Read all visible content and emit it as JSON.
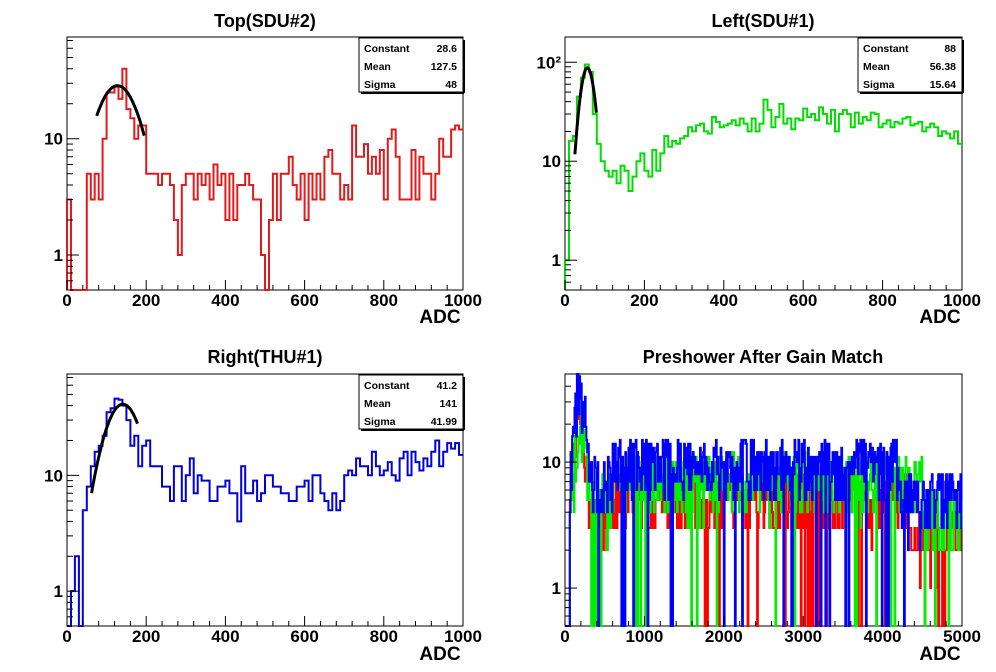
{
  "chart_data": [
    {
      "type": "histogram",
      "title": "Top(SDU#2)",
      "xlabel": "ADC",
      "ylabel": "",
      "xlim": [
        0,
        1000
      ],
      "ylim": [
        0.5,
        75
      ],
      "yscale": "log",
      "xticks": [
        "0",
        "200",
        "400",
        "600",
        "800",
        "1000"
      ],
      "yticks": [
        {
          "value": 1,
          "label": "1"
        },
        {
          "value": 10,
          "label": "10"
        }
      ],
      "color": "#e31a1c",
      "stats": [
        {
          "label": "Constant",
          "value": "28.6"
        },
        {
          "label": "Mean",
          "value": "127.5"
        },
        {
          "label": "Sigma",
          "value": "48"
        }
      ],
      "fit": {
        "constant": 28.6,
        "mean": 127.5,
        "sigma": 48,
        "range": [
          75,
          195
        ]
      },
      "bin_width": 10,
      "values": [
        3,
        0,
        0,
        0,
        0,
        5,
        3,
        5,
        3,
        10,
        25,
        25,
        28,
        22,
        40,
        18,
        15,
        10,
        13,
        13,
        5,
        5,
        5,
        4,
        5,
        5,
        4,
        2,
        1,
        4,
        5,
        5,
        3,
        5,
        4,
        5,
        3,
        6,
        4,
        5,
        2,
        5,
        2,
        4,
        4,
        5,
        4,
        3,
        3,
        1,
        0,
        2,
        5,
        2,
        5,
        5,
        7,
        4,
        3,
        5,
        2,
        5,
        3,
        5,
        3,
        7,
        8,
        5,
        5,
        3,
        4,
        3,
        13,
        7,
        7,
        9,
        5,
        7,
        5,
        8,
        3,
        10,
        12,
        7,
        3,
        3,
        3,
        8,
        3,
        7,
        5,
        5,
        3,
        5,
        10,
        7,
        7,
        12,
        13,
        12
      ]
    },
    {
      "type": "histogram",
      "title": "Left(SDU#1)",
      "xlabel": "ADC",
      "ylabel": "",
      "xlim": [
        0,
        1000
      ],
      "ylim": [
        0.5,
        180
      ],
      "yscale": "log",
      "xticks": [
        "0",
        "200",
        "400",
        "600",
        "800",
        "1000"
      ],
      "yticks": [
        {
          "value": 1,
          "label": "1"
        },
        {
          "value": 10,
          "label": "10"
        },
        {
          "value": 100,
          "label": "10²"
        }
      ],
      "color": "#00dd00",
      "stats": [
        {
          "label": "Constant",
          "value": "88"
        },
        {
          "label": "Mean",
          "value": "56.38"
        },
        {
          "label": "Sigma",
          "value": "15.64"
        }
      ],
      "fit": {
        "constant": 88,
        "mean": 56.38,
        "sigma": 15.64,
        "range": [
          25,
          80
        ]
      },
      "bin_width": 10,
      "values": [
        1,
        16,
        18,
        45,
        70,
        95,
        80,
        30,
        15,
        10,
        8,
        7,
        8,
        6,
        9,
        8,
        5,
        7,
        10,
        12,
        8,
        7,
        13,
        8,
        12,
        18,
        14,
        16,
        15,
        17,
        18,
        22,
        20,
        23,
        24,
        20,
        19,
        28,
        25,
        22,
        23,
        24,
        26,
        23,
        27,
        24,
        20,
        27,
        20,
        24,
        42,
        33,
        22,
        28,
        38,
        24,
        27,
        21,
        27,
        26,
        34,
        28,
        30,
        26,
        35,
        30,
        24,
        33,
        20,
        30,
        33,
        30,
        22,
        31,
        24,
        28,
        26,
        31,
        30,
        22,
        24,
        26,
        22,
        25,
        24,
        27,
        28,
        23,
        24,
        25,
        20,
        22,
        24,
        22,
        18,
        20,
        19,
        17,
        20,
        15
      ]
    },
    {
      "type": "histogram",
      "title": "Right(THU#1)",
      "xlabel": "ADC",
      "ylabel": "",
      "xlim": [
        0,
        1000
      ],
      "ylim": [
        0.5,
        75
      ],
      "yscale": "log",
      "xticks": [
        "0",
        "200",
        "400",
        "600",
        "800",
        "1000"
      ],
      "yticks": [
        {
          "value": 1,
          "label": "1"
        },
        {
          "value": 10,
          "label": "10"
        }
      ],
      "color": "#0000dd",
      "stats": [
        {
          "label": "Constant",
          "value": "41.2"
        },
        {
          "label": "Mean",
          "value": "141"
        },
        {
          "label": "Sigma",
          "value": "41.99"
        }
      ],
      "fit": {
        "constant": 41.2,
        "mean": 141,
        "sigma": 41.99,
        "range": [
          62,
          178
        ]
      },
      "bin_width": 10,
      "values": [
        0,
        1,
        2,
        0,
        5,
        8,
        12,
        16,
        18,
        22,
        35,
        38,
        46,
        45,
        40,
        30,
        18,
        22,
        12,
        18,
        20,
        12,
        12,
        12,
        8,
        8,
        6,
        12,
        12,
        6,
        10,
        14,
        7,
        10,
        9,
        9,
        6,
        6,
        8,
        8,
        9,
        7,
        7,
        4,
        12,
        7,
        7,
        9,
        6,
        7,
        10,
        10,
        8,
        8,
        7,
        7,
        6,
        6,
        8,
        8,
        9,
        6,
        10,
        10,
        7,
        6,
        5,
        7,
        5,
        6,
        10,
        11,
        10,
        14,
        12,
        12,
        10,
        16,
        12,
        10,
        11,
        13,
        10,
        9,
        14,
        16,
        10,
        16,
        13,
        11,
        14,
        12,
        16,
        20,
        12,
        16,
        19,
        17,
        19,
        15
      ]
    },
    {
      "type": "histogram-overlay",
      "title": "Preshower After Gain Match",
      "xlabel": "ADC",
      "ylabel": "",
      "xlim": [
        0,
        5000
      ],
      "ylim": [
        0.5,
        50
      ],
      "yscale": "log",
      "xticks": [
        "0",
        "1000",
        "2000",
        "3000",
        "4000",
        "5000"
      ],
      "yticks": [
        {
          "value": 1,
          "label": "1"
        },
        {
          "value": 10,
          "label": "10"
        }
      ],
      "bin_width": 10,
      "series": [
        {
          "color": "#ff0000",
          "peak": 20,
          "peak_center": 190,
          "plateau": 5.5,
          "plateau_end": 4300,
          "tail": 3
        },
        {
          "color": "#00ee00",
          "peak": 20,
          "peak_center": 200,
          "plateau": 7.5,
          "plateau_end": 4500,
          "tail": 4
        },
        {
          "color": "#0000ff",
          "peak": 35,
          "peak_center": 190,
          "plateau": 10,
          "plateau_end": 4200,
          "tail": 5.5
        }
      ]
    }
  ]
}
